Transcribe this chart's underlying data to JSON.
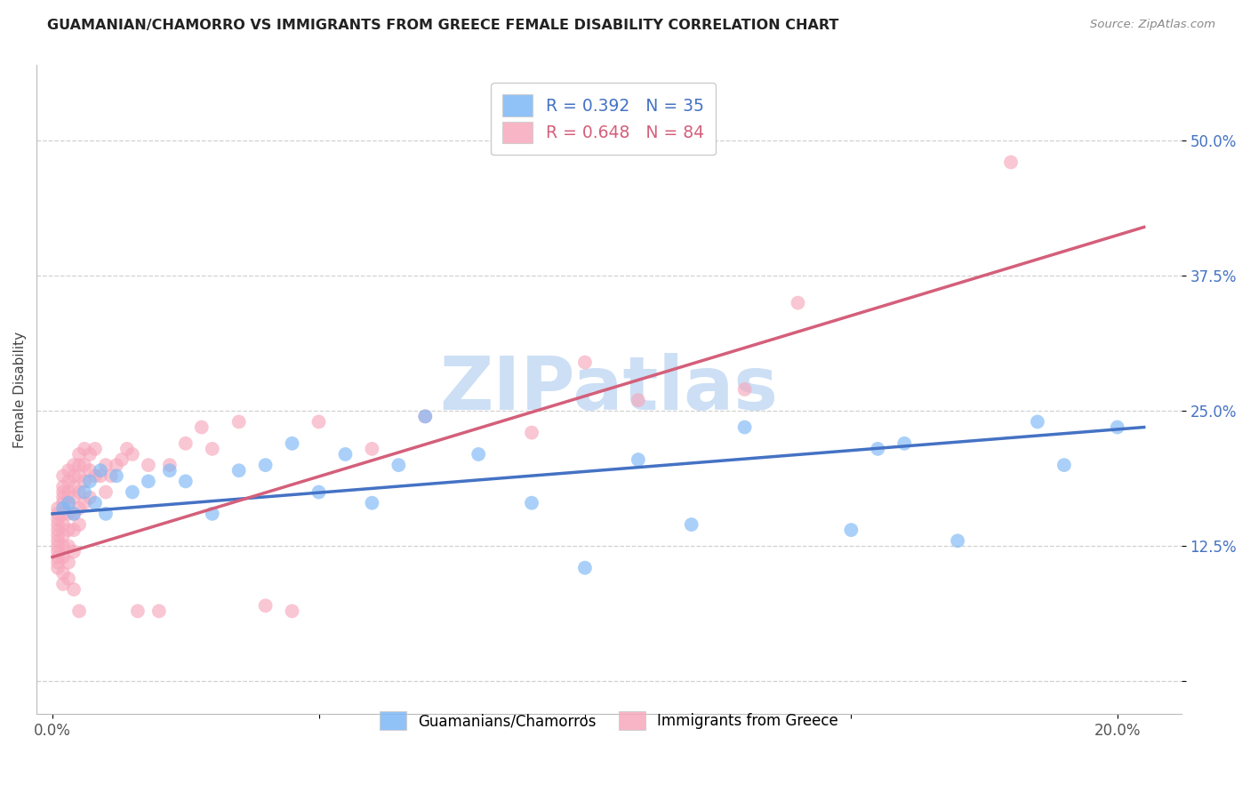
{
  "title": "GUAMANIAN/CHAMORRO VS IMMIGRANTS FROM GREECE FEMALE DISABILITY CORRELATION CHART",
  "source": "Source: ZipAtlas.com",
  "ylabel": "Female Disability",
  "blue_color": "#7db8f7",
  "pink_color": "#f7a8bc",
  "blue_line_color": "#4472c4",
  "pink_line_color": "#d45f7a",
  "watermark_color": "#ccdff5",
  "title_color": "#222222",
  "source_color": "#888888",
  "blue_label": "Guamanians/Chamorros",
  "pink_label": "Immigrants from Greece",
  "blue_r": "R = 0.392",
  "blue_n": "N = 35",
  "pink_r": "R = 0.648",
  "pink_n": "N = 84",
  "x_ticks": [
    0.0,
    0.05,
    0.1,
    0.15,
    0.2
  ],
  "x_tick_labels": [
    "0.0%",
    "",
    "",
    "",
    "20.0%"
  ],
  "y_ticks": [
    0.0,
    0.125,
    0.25,
    0.375,
    0.5
  ],
  "y_tick_labels": [
    "",
    "12.5%",
    "25.0%",
    "37.5%",
    "50.0%"
  ],
  "xlim": [
    -0.003,
    0.212
  ],
  "ylim": [
    -0.03,
    0.57
  ],
  "grid_color": "#cccccc",
  "spine_color": "#bbbbbb",
  "blue_x": [
    0.002,
    0.003,
    0.004,
    0.006,
    0.007,
    0.008,
    0.009,
    0.01,
    0.012,
    0.015,
    0.018,
    0.022,
    0.025,
    0.03,
    0.035,
    0.04,
    0.045,
    0.05,
    0.055,
    0.06,
    0.065,
    0.07,
    0.08,
    0.09,
    0.1,
    0.11,
    0.12,
    0.13,
    0.15,
    0.155,
    0.16,
    0.17,
    0.185,
    0.19,
    0.2
  ],
  "blue_y": [
    0.16,
    0.165,
    0.155,
    0.175,
    0.185,
    0.165,
    0.195,
    0.155,
    0.19,
    0.175,
    0.185,
    0.195,
    0.185,
    0.155,
    0.195,
    0.2,
    0.22,
    0.175,
    0.21,
    0.165,
    0.2,
    0.245,
    0.21,
    0.165,
    0.105,
    0.205,
    0.145,
    0.235,
    0.14,
    0.215,
    0.22,
    0.13,
    0.24,
    0.2,
    0.235
  ],
  "pink_x": [
    0.001,
    0.001,
    0.001,
    0.001,
    0.001,
    0.001,
    0.001,
    0.001,
    0.001,
    0.001,
    0.001,
    0.001,
    0.002,
    0.002,
    0.002,
    0.002,
    0.002,
    0.002,
    0.002,
    0.002,
    0.002,
    0.002,
    0.002,
    0.002,
    0.003,
    0.003,
    0.003,
    0.003,
    0.003,
    0.003,
    0.003,
    0.003,
    0.003,
    0.004,
    0.004,
    0.004,
    0.004,
    0.004,
    0.004,
    0.004,
    0.004,
    0.005,
    0.005,
    0.005,
    0.005,
    0.005,
    0.005,
    0.005,
    0.006,
    0.006,
    0.006,
    0.006,
    0.007,
    0.007,
    0.007,
    0.008,
    0.008,
    0.009,
    0.01,
    0.01,
    0.011,
    0.012,
    0.013,
    0.014,
    0.015,
    0.016,
    0.018,
    0.02,
    0.022,
    0.025,
    0.028,
    0.03,
    0.035,
    0.04,
    0.045,
    0.05,
    0.06,
    0.07,
    0.09,
    0.1,
    0.11,
    0.13,
    0.14,
    0.18
  ],
  "pink_y": [
    0.16,
    0.155,
    0.15,
    0.145,
    0.14,
    0.135,
    0.13,
    0.125,
    0.12,
    0.115,
    0.11,
    0.105,
    0.19,
    0.18,
    0.175,
    0.17,
    0.165,
    0.155,
    0.145,
    0.135,
    0.125,
    0.115,
    0.1,
    0.09,
    0.195,
    0.185,
    0.175,
    0.165,
    0.155,
    0.14,
    0.125,
    0.11,
    0.095,
    0.2,
    0.19,
    0.18,
    0.17,
    0.155,
    0.14,
    0.12,
    0.085,
    0.21,
    0.2,
    0.19,
    0.175,
    0.16,
    0.145,
    0.065,
    0.215,
    0.2,
    0.185,
    0.165,
    0.21,
    0.195,
    0.17,
    0.215,
    0.19,
    0.19,
    0.2,
    0.175,
    0.19,
    0.2,
    0.205,
    0.215,
    0.21,
    0.065,
    0.2,
    0.065,
    0.2,
    0.22,
    0.235,
    0.215,
    0.24,
    0.07,
    0.065,
    0.24,
    0.215,
    0.245,
    0.23,
    0.295,
    0.26,
    0.27,
    0.35,
    0.48
  ]
}
